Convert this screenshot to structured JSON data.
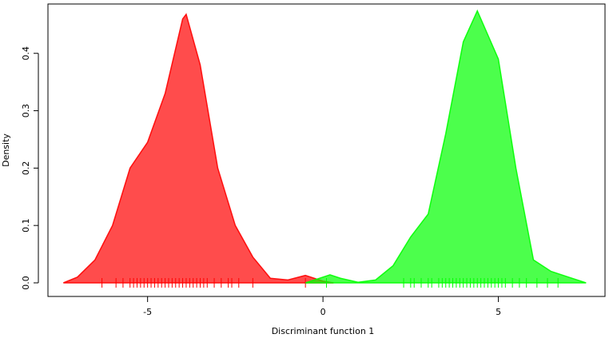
{
  "chart_data": {
    "type": "area",
    "xlabel": "Discriminant function 1",
    "ylabel": "Density",
    "xlim": [
      -7.84,
      8.04
    ],
    "ylim": [
      -0.0237,
      0.486
    ],
    "xticks": [
      -5,
      0,
      5
    ],
    "yticks": [
      {
        "value": 0,
        "label": "0.0"
      },
      0.1,
      0.2,
      0.3,
      0.4
    ],
    "series": [
      {
        "color": "#ff0000",
        "x": [
          -7.4,
          -7.0,
          -6.5,
          -6.0,
          -5.5,
          -5.0,
          -4.5,
          -4.0,
          -3.9,
          -3.5,
          -3.0,
          -2.5,
          -2.0,
          -1.5,
          -1.0,
          -0.5,
          0.0,
          0.3
        ],
        "values": [
          0,
          0.01,
          0.04,
          0.1,
          0.2,
          0.245,
          0.33,
          0.46,
          0.468,
          0.38,
          0.2,
          0.1,
          0.045,
          0.008,
          0.005,
          0.013,
          0.003,
          0
        ],
        "rug": [
          -6.3,
          -5.9,
          -5.7,
          -5.5,
          -5.4,
          -5.3,
          -5.2,
          -5.1,
          -5.0,
          -4.9,
          -4.8,
          -4.7,
          -4.6,
          -4.5,
          -4.4,
          -4.3,
          -4.2,
          -4.1,
          -4.0,
          -3.9,
          -3.8,
          -3.7,
          -3.6,
          -3.5,
          -3.4,
          -3.3,
          -3.1,
          -2.9,
          -2.7,
          -2.6,
          -2.4,
          -2.0,
          -0.5
        ]
      },
      {
        "color": "#00ff00",
        "x": [
          -0.5,
          0.0,
          0.2,
          0.5,
          1.0,
          1.5,
          2.0,
          2.5,
          3.0,
          3.5,
          4.0,
          4.4,
          5.0,
          5.5,
          6.0,
          6.5,
          7.0,
          7.5
        ],
        "values": [
          0,
          0.01,
          0.014,
          0.008,
          0.001,
          0.005,
          0.03,
          0.08,
          0.12,
          0.26,
          0.42,
          0.474,
          0.39,
          0.2,
          0.04,
          0.02,
          0.01,
          0
        ],
        "rug": [
          0.1,
          2.3,
          2.5,
          2.6,
          2.8,
          3.0,
          3.1,
          3.3,
          3.4,
          3.5,
          3.6,
          3.7,
          3.8,
          3.9,
          4.0,
          4.1,
          4.2,
          4.3,
          4.4,
          4.5,
          4.6,
          4.7,
          4.8,
          4.9,
          5.0,
          5.1,
          5.2,
          5.4,
          5.6,
          5.8,
          6.1,
          6.4,
          6.7
        ]
      }
    ]
  }
}
